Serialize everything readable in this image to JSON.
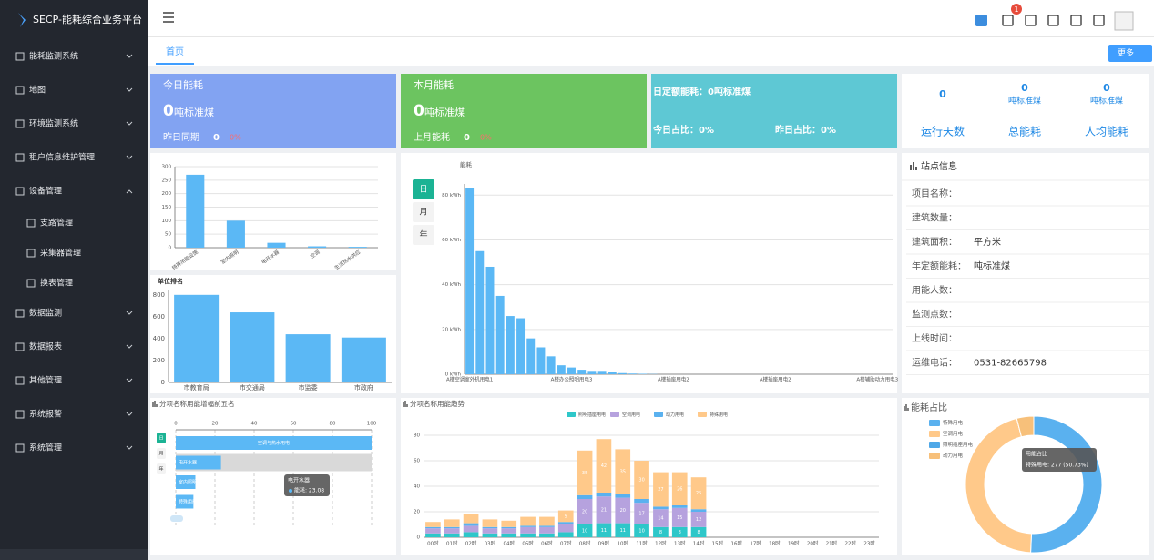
{
  "sidebar": {
    "title": "SECP-能耗综合业务平台",
    "menu": [
      {
        "label": "能耗监测系统"
      },
      {
        "label": "地图"
      },
      {
        "label": "环境监测系统"
      },
      {
        "label": "租户信息维护管理"
      },
      {
        "label": "设备管理",
        "children": [
          "支路管理",
          "采集器管理",
          "换表管理"
        ]
      },
      {
        "label": "数据监测"
      },
      {
        "label": "数据报表"
      },
      {
        "label": "其他管理"
      },
      {
        "label": "系统报警"
      },
      {
        "label": "系统管理"
      }
    ]
  },
  "header": {
    "notifications": 1,
    "tab": "首页",
    "more": "更多"
  },
  "cards": {
    "today": {
      "title": "今日能耗",
      "value": 0,
      "unit": "吨标准煤",
      "compare_label": "昨日同期",
      "compare_value": 0,
      "compare_change": "0%"
    },
    "month": {
      "title": "本月能耗",
      "value": 0,
      "unit": "吨标准煤",
      "compare_label": "上月能耗",
      "compare_value": 0,
      "compare_change": "0%"
    },
    "quota": {
      "daily_quota": "日定额能耗：0吨标准煤",
      "today_ratio": "今日占比：0%",
      "yesterday_ratio": "昨日占比：0%"
    },
    "stats": [
      {
        "value": 0,
        "label": "运行天数"
      },
      {
        "value": 0,
        "unit": "吨标准煤",
        "label": "总能耗"
      },
      {
        "value": 0,
        "unit": "吨标准煤",
        "label": "人均能耗"
      }
    ]
  },
  "station": {
    "title": "站点信息",
    "fields": [
      {
        "label": "项目名称："
      },
      {
        "label": "建筑数量："
      },
      {
        "label": "建筑面积：",
        "value": "平方米"
      },
      {
        "label": "年定额能耗：",
        "value": "吨标准煤"
      },
      {
        "label": "用能人数："
      },
      {
        "label": "监测点数："
      },
      {
        "label": "上线时间："
      },
      {
        "label": "运维电话：",
        "value": "0531-82665798"
      }
    ]
  },
  "chart_data": [
    {
      "type": "bar",
      "categories": [
        "特殊用能设施",
        "室内照明",
        "电开水器",
        "空调",
        "生活热水供应"
      ],
      "values": [
        270,
        100,
        18,
        5,
        3
      ],
      "color": "#5bb8f5",
      "ylim": [
        0,
        300
      ],
      "yticks": [
        0,
        50,
        100,
        150,
        200,
        250,
        300
      ],
      "grid": true
    },
    {
      "type": "bar",
      "title": "单位排名",
      "categories": [
        "市教育局",
        "市交通局",
        "市监委",
        "市政府"
      ],
      "values": [
        800,
        640,
        440,
        410
      ],
      "color": "#5bb8f5",
      "ylim": [
        0,
        840
      ],
      "yticks": [
        0,
        200,
        400,
        600,
        800
      ],
      "grid": false
    },
    {
      "type": "bar",
      "y_label": "能耗",
      "buttons": [
        "日",
        "月",
        "年"
      ],
      "categories": [
        "A楼空调室外机用电1",
        null,
        null,
        null,
        null,
        null,
        null,
        null,
        null,
        null,
        "A楼办公照明用电3",
        null,
        null,
        null,
        null,
        null,
        null,
        null,
        null,
        null,
        "A楼插座用电2",
        null,
        null,
        null,
        null,
        null,
        null,
        null,
        null,
        null,
        "A楼插座用电2",
        null,
        null,
        null,
        null,
        null,
        null,
        null,
        null,
        null,
        "A楼辅助动力用电3",
        null
      ],
      "values": [
        83,
        55,
        48,
        35,
        26,
        25,
        16,
        12,
        8,
        4,
        3,
        2,
        1.5,
        1.5,
        1,
        0.5,
        0.3,
        0.2,
        0.1,
        0,
        0,
        0,
        0,
        0,
        0,
        0,
        0,
        0,
        0,
        0,
        0,
        0,
        0,
        0,
        0,
        0,
        0,
        0,
        0,
        0,
        0,
        0
      ],
      "color": "#5bb8f5",
      "ylim": [
        0,
        85
      ],
      "yticks": [
        {
          "value": 0,
          "label": "0 kWh"
        },
        {
          "value": 20,
          "label": "20 kWh"
        },
        {
          "value": 40,
          "label": "40 kWh"
        },
        {
          "value": 60,
          "label": "60 kWh"
        },
        {
          "value": 80,
          "label": "80 kWh"
        }
      ],
      "grid": true
    },
    {
      "type": "hbar",
      "title": "分项名称用能增幅前五名",
      "buttons": [
        "日",
        "月",
        "年"
      ],
      "categories": [
        "空调与热水用电",
        "电开水器",
        "室内照明",
        "特殊用能设施"
      ],
      "values": [
        100,
        23.08,
        10,
        9
      ],
      "color": "#5bb8f5",
      "xlim": [
        0,
        100
      ],
      "xticks": [
        0,
        20,
        40,
        60,
        80,
        100
      ],
      "grid": true,
      "tooltip": {
        "title": "电开水器",
        "label": "能耗: 23.08"
      }
    },
    {
      "type": "stacked_bar",
      "title": "分项名称用能趋势",
      "categories": [
        "00时",
        "01时",
        "02时",
        "03时",
        "04时",
        "05时",
        "06时",
        "07时",
        "08时",
        "09时",
        "10时",
        "11时",
        "12时",
        "13时",
        "14时",
        "15时",
        "16时",
        "17时",
        "18时",
        "19时",
        "20时",
        "21时",
        "22时",
        "23时"
      ],
      "series": [
        {
          "name": "照明插座用电",
          "color": "#2ec7c9",
          "values": [
            3,
            3,
            4,
            3,
            3,
            3,
            3,
            4,
            10,
            11,
            11,
            10,
            8,
            8,
            8,
            0,
            0,
            0,
            0,
            0,
            0,
            0,
            0,
            0
          ]
        },
        {
          "name": "空调用电",
          "color": "#b6a2de",
          "values": [
            4,
            4,
            5,
            4,
            4,
            5,
            5,
            6,
            20,
            21,
            20,
            17,
            14,
            15,
            12,
            0,
            0,
            0,
            0,
            0,
            0,
            0,
            0,
            0
          ]
        },
        {
          "name": "动力用电",
          "color": "#5ab1ef",
          "values": [
            1,
            1,
            2,
            1,
            1,
            1,
            1,
            2,
            3,
            3,
            3,
            3,
            2,
            2,
            2,
            0,
            0,
            0,
            0,
            0,
            0,
            0,
            0,
            0
          ]
        },
        {
          "name": "特殊用电",
          "color": "#ffc98a",
          "values": [
            4,
            6,
            7,
            6,
            5,
            7,
            7,
            9,
            35,
            42,
            35,
            30,
            27,
            26,
            25,
            0,
            0,
            0,
            0,
            0,
            0,
            0,
            0,
            0
          ]
        }
      ],
      "ylim": [
        0,
        80
      ],
      "yticks": [
        0,
        20,
        40,
        60,
        80
      ],
      "grid": true
    },
    {
      "type": "donut",
      "title": "能耗占比",
      "categories": [
        "特殊用电",
        "空调用电",
        "照明插座用电",
        "动力用电"
      ],
      "values": [
        277,
        247,
        0,
        22
      ],
      "colors": [
        "#5ab1ef",
        "#ffc98a",
        "#4fa8e8",
        "#f7c07a"
      ],
      "tooltip": {
        "title": "用能占比",
        "label": "特殊用电: 277 (50.73%)"
      }
    }
  ]
}
